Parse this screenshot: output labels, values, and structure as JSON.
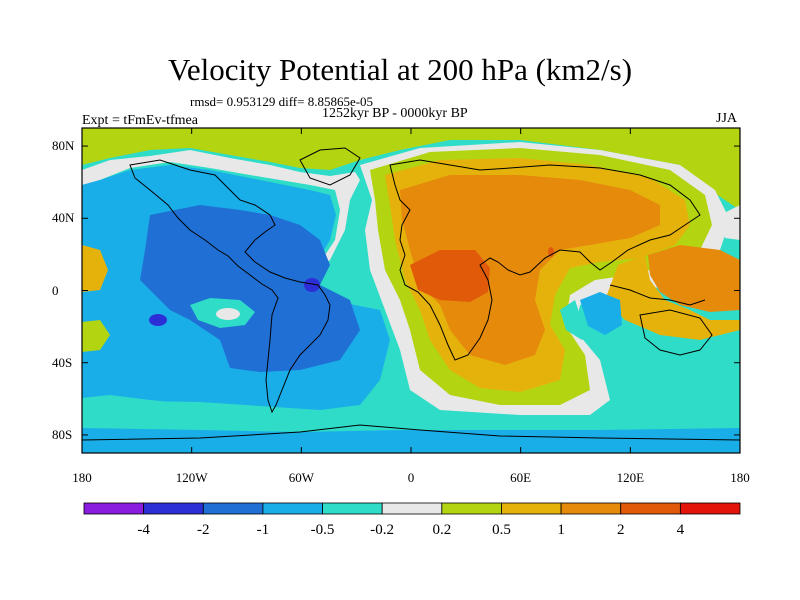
{
  "title": "Velocity Potential at 200 hPa (km2/s)",
  "stats": "rmsd= 0.953129  diff= 8.85865e-05",
  "period": "1252kyr BP - 0000kyr BP",
  "experiment": "Expt = tFmEv-tfmea",
  "season": "JJA",
  "axes": {
    "lat_ticks": [
      {
        "label": "80N",
        "lat": 80
      },
      {
        "label": "40N",
        "lat": 40
      },
      {
        "label": "0",
        "lat": 0
      },
      {
        "label": "40S",
        "lat": -40
      },
      {
        "label": "80S",
        "lat": -80
      }
    ],
    "lon_ticks": [
      {
        "label": "180",
        "lon": -180
      },
      {
        "label": "120W",
        "lon": -120
      },
      {
        "label": "60W",
        "lon": -60
      },
      {
        "label": "0",
        "lon": 0
      },
      {
        "label": "60E",
        "lon": 60
      },
      {
        "label": "120E",
        "lon": 120
      },
      {
        "label": "180",
        "lon": 180
      }
    ],
    "lon_range": [
      -180,
      180
    ],
    "lat_range": [
      -90,
      90
    ]
  },
  "colorbar": {
    "colors": [
      "#8a1ce0",
      "#2d2fd6",
      "#1f6fd4",
      "#1aaee8",
      "#2edcc8",
      "#e8e8e8",
      "#b3d411",
      "#e5b20c",
      "#e68a0c",
      "#e05a0a",
      "#e3150a"
    ],
    "labels": [
      "-4",
      "-2",
      "-1",
      "-0.5",
      "-0.2",
      "0.2",
      "0.5",
      "1",
      "2",
      "4"
    ]
  },
  "legend_levels": {
    "lt_neg4": "#8a1ce0",
    "neg4_neg2": "#2d2fd6",
    "neg2_neg1": "#1f6fd4",
    "neg1_neg05": "#1aaee8",
    "neg05_neg02": "#2edcc8",
    "neg02_02": "#e8e8e8",
    "p02_p05": "#b3d411",
    "p05_p1": "#e5b20c",
    "p1_p2": "#e68a0c",
    "p2_p4": "#e05a0a",
    "gt_p4": "#e3150a"
  }
}
